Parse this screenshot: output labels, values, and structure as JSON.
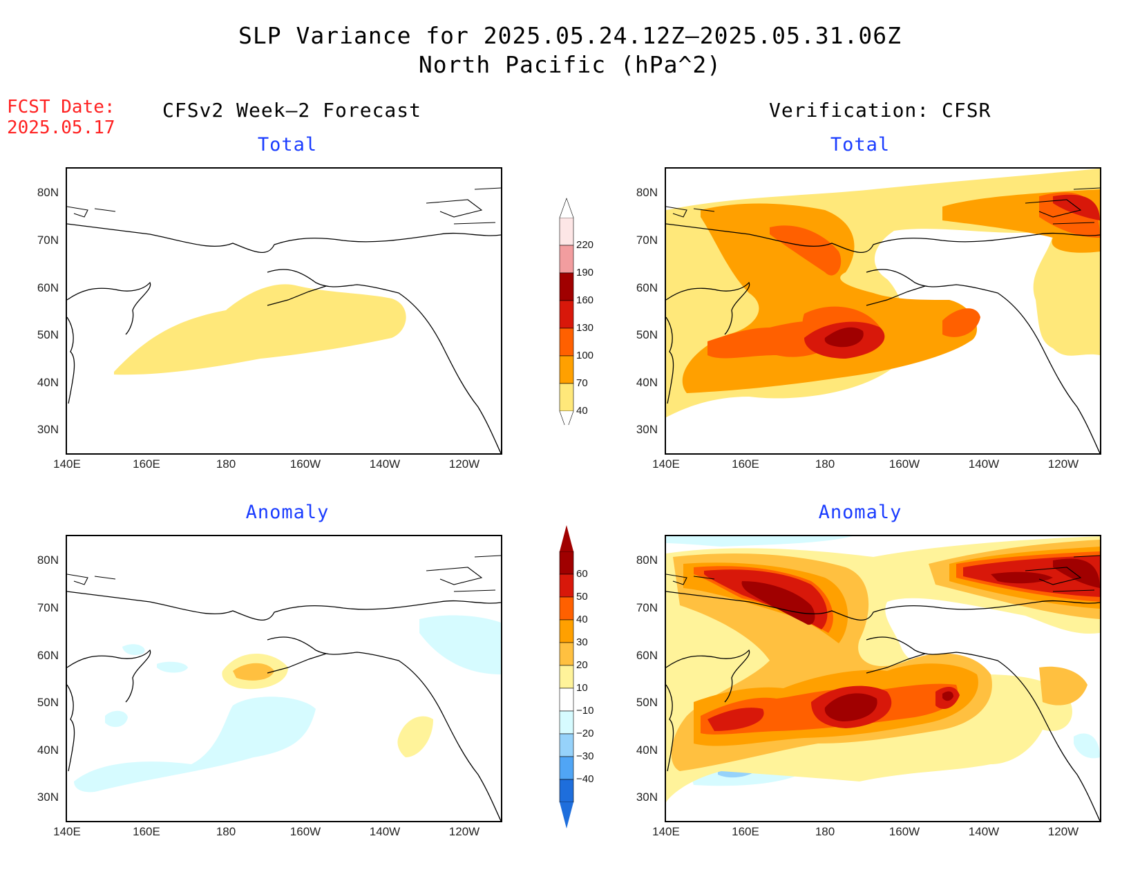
{
  "header": {
    "title_line1": "SLP Variance for 2025.05.24.12Z—2025.05.31.06Z",
    "title_line2": "North Pacific (hPa^2)",
    "fcst_line1": "FCST Date:",
    "fcst_line2": "2025.05.17",
    "left_model": "CFSv2 Week—2 Forecast",
    "right_model": "Verification: CFSR"
  },
  "panels": [
    {
      "id": "fcst-total",
      "subtitle": "Total"
    },
    {
      "id": "verif-total",
      "subtitle": "Total"
    },
    {
      "id": "fcst-anomaly",
      "subtitle": "Anomaly"
    },
    {
      "id": "verif-anomaly",
      "subtitle": "Anomaly"
    }
  ],
  "axes": {
    "lat_ticks": [
      "80N",
      "70N",
      "60N",
      "50N",
      "40N",
      "30N"
    ],
    "lon_ticks": [
      "140E",
      "160E",
      "180",
      "160W",
      "140W",
      "120W"
    ]
  },
  "colorbars": {
    "total": {
      "labels": [
        "220",
        "190",
        "160",
        "130",
        "100",
        "70",
        "40"
      ],
      "colors": [
        "#fde6e6",
        "#f29d9f",
        "#a00000",
        "#d8180a",
        "#ff6000",
        "#ffa000",
        "#ffe87a"
      ]
    },
    "anomaly": {
      "labels": [
        "60",
        "50",
        "40",
        "30",
        "20",
        "10",
        "−10",
        "−20",
        "−30",
        "−40"
      ],
      "colors": [
        "#a00000",
        "#d8180a",
        "#ff6000",
        "#ffa000",
        "#ffc040",
        "#fff39a",
        "#ffffff",
        "#d6fbff",
        "#96d2fa",
        "#50a5f5",
        "#1e6edc"
      ]
    }
  },
  "colors": {
    "title_red": "#ff2020",
    "subtitle_blue": "#1a3cff"
  }
}
